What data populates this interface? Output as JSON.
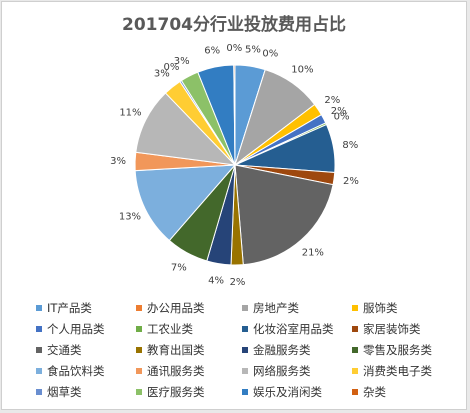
{
  "chart_data": {
    "type": "pie",
    "title": "201704分行业投放费用占比",
    "legend_position": "bottom",
    "slices": [
      {
        "label": "IT产品类",
        "value": 5,
        "display": "5%",
        "color": "#5b9bd5"
      },
      {
        "label": "办公用品类",
        "value": 0,
        "display": "0%",
        "color": "#ed7d31"
      },
      {
        "label": "房地产类",
        "value": 10,
        "display": "10%",
        "color": "#a5a5a5"
      },
      {
        "label": "服饰类",
        "value": 2,
        "display": "2%",
        "color": "#ffc000"
      },
      {
        "label": "个人用品类",
        "value": 1.5,
        "display": "2%",
        "color": "#4472c4"
      },
      {
        "label": "工农业类",
        "value": 0.3,
        "display": "0%",
        "color": "#70ad47"
      },
      {
        "label": "化妆浴室用品类",
        "value": 8,
        "display": "8%",
        "color": "#255e91"
      },
      {
        "label": "家居装饰类",
        "value": 2,
        "display": "2%",
        "color": "#9e480e"
      },
      {
        "label": "交通类",
        "value": 21,
        "display": "21%",
        "color": "#636363"
      },
      {
        "label": "教育出国类",
        "value": 2,
        "display": "2%",
        "color": "#997300"
      },
      {
        "label": "金融服务类",
        "value": 4,
        "display": "4%",
        "color": "#264478"
      },
      {
        "label": "零售及服务类",
        "value": 7,
        "display": "7%",
        "color": "#43682b"
      },
      {
        "label": "食品饮料类",
        "value": 13,
        "display": "13%",
        "color": "#7cafdd"
      },
      {
        "label": "通讯服务类",
        "value": 3,
        "display": "3%",
        "color": "#f1975a"
      },
      {
        "label": "网络服务类",
        "value": 11,
        "display": "11%",
        "color": "#b7b7b7"
      },
      {
        "label": "消费类电子类",
        "value": 3,
        "display": "3%",
        "color": "#ffcd33"
      },
      {
        "label": "烟草类",
        "value": 0.3,
        "display": "0%",
        "color": "#698ed0"
      },
      {
        "label": "医疗服务类",
        "value": 3,
        "display": "3%",
        "color": "#8cc168"
      },
      {
        "label": "娱乐及消闲类",
        "value": 6,
        "display": "6%",
        "color": "#327dc2"
      },
      {
        "label": "杂类",
        "value": 0.2,
        "display": "0%",
        "color": "#d26012"
      }
    ]
  }
}
